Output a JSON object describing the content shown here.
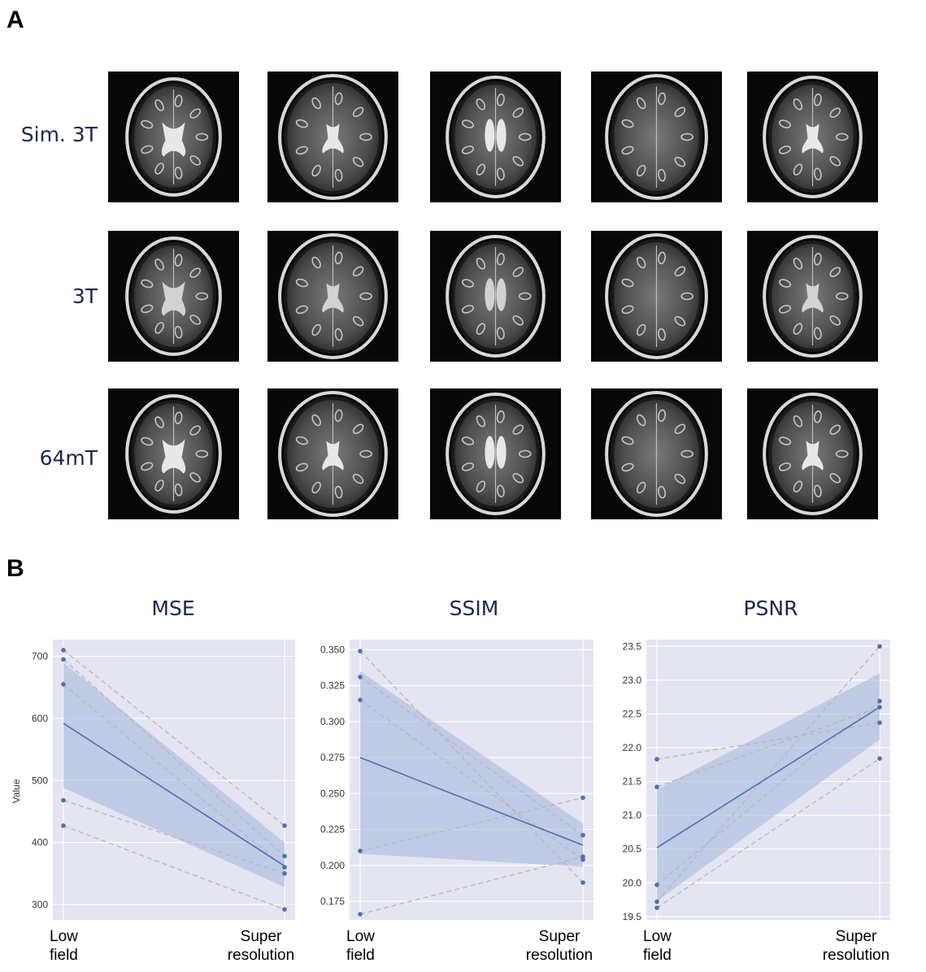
{
  "panel_a": {
    "letter": "A",
    "row_labels": [
      "Sim. 3T",
      "3T",
      "64mT"
    ]
  },
  "panel_b": {
    "letter": "B",
    "x_tick_labels": {
      "low": [
        "Low",
        "field"
      ],
      "super": [
        "Super",
        "resolution"
      ]
    }
  },
  "chart_data": [
    {
      "type": "line",
      "title": "MSE",
      "ylabel": "Value",
      "categories": [
        "Low field",
        "Super resolution"
      ],
      "ylim": [
        275,
        727
      ],
      "yticks": [
        300,
        400,
        500,
        600,
        700
      ],
      "ytick_labels": [
        "300",
        "400",
        "500",
        "600",
        "700"
      ],
      "subjects": [
        [
          710,
          427
        ],
        [
          695,
          378
        ],
        [
          655,
          360
        ],
        [
          468,
          350
        ],
        [
          427,
          292
        ]
      ],
      "mean": [
        592,
        362
      ],
      "ci": [
        [
          488,
          690
        ],
        [
          328,
          400
        ]
      ]
    },
    {
      "type": "line",
      "title": "SSIM",
      "ylabel": "",
      "categories": [
        "Low field",
        "Super resolution"
      ],
      "ylim": [
        0.162,
        0.357
      ],
      "yticks": [
        0.175,
        0.2,
        0.225,
        0.25,
        0.275,
        0.3,
        0.325,
        0.35
      ],
      "ytick_labels": [
        "0.175",
        "0.200",
        "0.225",
        "0.250",
        "0.275",
        "0.300",
        "0.325",
        "0.350"
      ],
      "subjects": [
        [
          0.349,
          0.188
        ],
        [
          0.331,
          0.221
        ],
        [
          0.315,
          0.204
        ],
        [
          0.21,
          0.247
        ],
        [
          0.166,
          0.206
        ]
      ],
      "mean": [
        0.275,
        0.214
      ],
      "ci": [
        [
          0.208,
          0.335
        ],
        [
          0.199,
          0.229
        ]
      ]
    },
    {
      "type": "line",
      "title": "PSNR",
      "ylabel": "",
      "categories": [
        "Low field",
        "Super resolution"
      ],
      "ylim": [
        19.45,
        23.6
      ],
      "yticks": [
        19.5,
        20.0,
        20.5,
        21.0,
        21.5,
        22.0,
        22.5,
        23.0,
        23.5
      ],
      "ytick_labels": [
        "19.5",
        "20.0",
        "20.5",
        "21.0",
        "21.5",
        "22.0",
        "22.5",
        "23.0",
        "23.5"
      ],
      "subjects": [
        [
          21.83,
          22.37
        ],
        [
          21.42,
          22.6
        ],
        [
          19.97,
          22.69
        ],
        [
          19.72,
          23.5
        ],
        [
          19.63,
          21.84
        ]
      ],
      "mean": [
        20.52,
        22.6
      ],
      "ci": [
        [
          19.73,
          21.38
        ],
        [
          22.12,
          23.1
        ]
      ]
    }
  ],
  "colors": {
    "plot_bg": "#e4e5f0",
    "grid": "#ffffff",
    "mean_line": "#4c72b0",
    "band": "#a9b9e0",
    "subject_line": "#b9b9bb",
    "point": "#4c72b0",
    "title_text": "#1a2550"
  }
}
